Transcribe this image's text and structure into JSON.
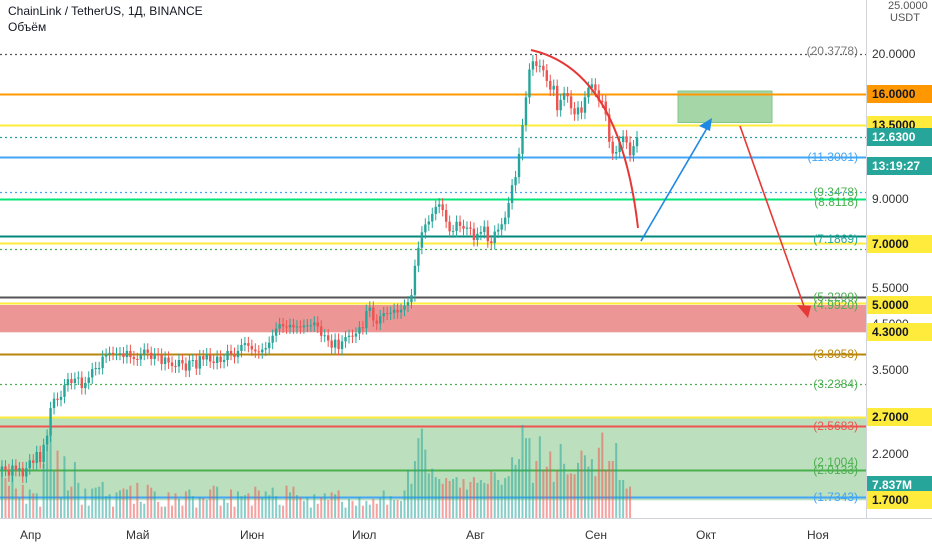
{
  "header": {
    "title": "ChainLink / TetherUS, 1Д, BINANCE",
    "volume_label": "Объём"
  },
  "axis": {
    "currency_top": "25.0000",
    "currency": "USDT"
  },
  "chart_data": {
    "type": "candlestick",
    "title": "ChainLink / TetherUS, 1Д, BINANCE",
    "exchange": "BINANCE",
    "timeframe": "1Д",
    "y_scale": "log",
    "ylim": [
      1.6,
      25
    ],
    "x_ticks": [
      "Апр",
      "Май",
      "Июн",
      "Июл",
      "Авг",
      "Сен",
      "Окт",
      "Ноя"
    ],
    "y_ticks": [
      "20.0000",
      "9.0000",
      "5.5000",
      "4.5000",
      "3.5000",
      "2.2000"
    ],
    "price_tags": [
      {
        "label": "16.0000",
        "value": 16.0,
        "bg": "#ff9800",
        "fg": "#131722"
      },
      {
        "label": "13.5000",
        "value": 13.5,
        "bg": "#ffeb3b",
        "fg": "#131722"
      },
      {
        "label": "12.6300",
        "value": 12.63,
        "bg": "#26a69a",
        "fg": "#ffffff"
      },
      {
        "label": "13:19:27",
        "value": 10.8,
        "bg": "#26a69a",
        "fg": "#ffffff"
      },
      {
        "label": "7.0000",
        "value": 7.0,
        "bg": "#ffeb3b",
        "fg": "#131722"
      },
      {
        "label": "5.0000",
        "value": 5.0,
        "bg": "#ffeb3b",
        "fg": "#131722"
      },
      {
        "label": "4.3000",
        "value": 4.3,
        "bg": "#ffeb3b",
        "fg": "#131722"
      },
      {
        "label": "2.7000",
        "value": 2.7,
        "bg": "#ffeb3b",
        "fg": "#131722"
      },
      {
        "label": "7.837M",
        "value": 1.85,
        "bg": "#26a69a",
        "fg": "#ffffff"
      },
      {
        "label": "1.7000",
        "value": 1.7,
        "bg": "#ffeb3b",
        "fg": "#131722"
      }
    ],
    "level_labels": [
      {
        "label": "(20.3778)",
        "value": 20.3778,
        "color": "#777777"
      },
      {
        "label": "(11.3001)",
        "value": 11.3001,
        "color": "#42a5f5"
      },
      {
        "label": "(9.3478)",
        "value": 9.3478,
        "color": "#4caf50"
      },
      {
        "label": "(8.8118)",
        "value": 8.8118,
        "color": "#4caf50"
      },
      {
        "label": "(7.1869)",
        "value": 7.1869,
        "color": "#26a69a"
      },
      {
        "label": "(5.2299)",
        "value": 5.2299,
        "color": "#4caf50"
      },
      {
        "label": "(4.9920)",
        "value": 4.992,
        "color": "#4caf50"
      },
      {
        "label": "(3.8058)",
        "value": 3.8058,
        "color": "#b8860b"
      },
      {
        "label": "(3.2384)",
        "value": 3.2384,
        "color": "#4caf50"
      },
      {
        "label": "(2.5683)",
        "value": 2.5683,
        "color": "#ef5350"
      },
      {
        "label": "(2.1004)",
        "value": 2.1004,
        "color": "#4caf50"
      },
      {
        "label": "(2.0133)",
        "value": 2.0133,
        "color": "#4caf50"
      },
      {
        "label": "(1.7343)",
        "value": 1.7343,
        "color": "#42a5f5"
      }
    ],
    "horizontal_levels": [
      {
        "value": 20.0,
        "color": "#555555",
        "style": "dotted"
      },
      {
        "value": 16.0,
        "color": "#ff9800",
        "style": "solid"
      },
      {
        "value": 13.5,
        "color": "#ffeb3b",
        "style": "solid"
      },
      {
        "value": 12.63,
        "color": "#26a69a",
        "style": "dotted"
      },
      {
        "value": 11.3001,
        "color": "#42a5f5",
        "style": "solid"
      },
      {
        "value": 9.3478,
        "color": "#42a5f5",
        "style": "dotted"
      },
      {
        "value": 9.0,
        "color": "#00e676",
        "style": "solid"
      },
      {
        "value": 7.3,
        "color": "#00897b",
        "style": "solid"
      },
      {
        "value": 7.05,
        "color": "#ffeb3b",
        "style": "solid"
      },
      {
        "value": 6.8,
        "color": "#4caf50",
        "style": "dotted"
      },
      {
        "value": 5.2299,
        "color": "#555555",
        "style": "solid"
      },
      {
        "value": 5.05,
        "color": "#ffeb3b",
        "style": "solid"
      },
      {
        "value": 3.8058,
        "color": "#b8860b",
        "style": "solid"
      },
      {
        "value": 3.2384,
        "color": "#4caf50",
        "style": "dotted"
      },
      {
        "value": 2.7,
        "color": "#ffeb3b",
        "style": "solid"
      },
      {
        "value": 2.5683,
        "color": "#ef5350",
        "style": "solid"
      },
      {
        "value": 2.0133,
        "color": "#4caf50",
        "style": "solid"
      },
      {
        "value": 1.7343,
        "color": "#42a5f5",
        "style": "solid"
      }
    ],
    "zones": [
      {
        "from": 4.3,
        "to": 5.0,
        "color": "#e57373"
      },
      {
        "from": 1.7,
        "to": 2.7,
        "color": "#a5d6a7"
      }
    ],
    "target_box": {
      "from": 13.7,
      "to": 16.3,
      "color": "#a5d6a7"
    },
    "series": [
      {
        "name": "LINKUSDT",
        "close": [
          2.05,
          2.01,
          1.95,
          2.06,
          2.01,
          2.03,
          1.94,
          2.03,
          2.12,
          2.09,
          2.22,
          2.1,
          2.31,
          2.43,
          2.83,
          2.98,
          2.96,
          3.01,
          3.21,
          3.32,
          3.25,
          3.33,
          3.35,
          3.16,
          3.25,
          3.35,
          3.51,
          3.53,
          3.53,
          3.76,
          3.8,
          3.84,
          3.82,
          3.82,
          3.83,
          3.75,
          3.88,
          3.75,
          3.71,
          3.7,
          3.82,
          3.91,
          3.84,
          3.71,
          3.81,
          3.8,
          3.61,
          3.74,
          3.64,
          3.57,
          3.56,
          3.69,
          3.62,
          3.48,
          3.68,
          3.69,
          3.52,
          3.77,
          3.7,
          3.81,
          3.66,
          3.63,
          3.76,
          3.65,
          3.69,
          3.88,
          3.82,
          3.75,
          3.88,
          4.01,
          4.05,
          3.99,
          3.91,
          3.87,
          3.85,
          3.91,
          3.94,
          4.06,
          4.22,
          4.39,
          4.5,
          4.44,
          4.42,
          4.48,
          4.42,
          4.44,
          4.42,
          4.46,
          4.47,
          4.47,
          4.54,
          4.44,
          4.22,
          4.23,
          4.11,
          3.95,
          4.13,
          3.92,
          4.09,
          4.19,
          4.22,
          4.2,
          4.27,
          4.42,
          4.4,
          4.84,
          4.93,
          4.59,
          4.51,
          4.7,
          4.78,
          4.77,
          4.79,
          4.87,
          4.8,
          4.87,
          4.98,
          5.08,
          5.28,
          6.21,
          6.86,
          7.47,
          7.8,
          7.93,
          8.27,
          8.6,
          8.72,
          8.45,
          7.92,
          7.51,
          7.52,
          7.92,
          7.74,
          7.62,
          7.67,
          7.62,
          7.16,
          7.41,
          7.48,
          7.71,
          7.11,
          7.04,
          7.5,
          7.58,
          7.81,
          8.1,
          8.78,
          9.69,
          10.13,
          11.52,
          13.51,
          15.74,
          18.36,
          19.21,
          18.72,
          18.74,
          18.28,
          17.24,
          16.43,
          16.78,
          14.66,
          15.53,
          16.12,
          15.83,
          14.82,
          14.33,
          14.89,
          14.46,
          15.75,
          16.59,
          16.91,
          16.35,
          15.44,
          15.38,
          14.32,
          12.32,
          11.54,
          11.64,
          12.3,
          12.69,
          12.27,
          11.43,
          12.02,
          12.63
        ]
      },
      {
        "name": "Объём",
        "values": [
          0.5,
          0.42,
          0.34,
          0.47,
          0.31,
          0.21,
          0.35,
          0.15,
          0.3,
          0.26,
          0.26,
          0.12,
          0.57,
          0.76,
          1.0,
          0.49,
          0.71,
          0.22,
          0.65,
          0.29,
          0.33,
          0.59,
          0.37,
          0.14,
          0.31,
          0.13,
          0.31,
          0.32,
          0.33,
          0.38,
          0.23,
          0.25,
          0.12,
          0.27,
          0.29,
          0.31,
          0.3,
          0.34,
          0.15,
          0.37,
          0.17,
          0.15,
          0.35,
          0.32,
          0.28,
          0.17,
          0.12,
          0.12,
          0.27,
          0.13,
          0.26,
          0.2,
          0.13,
          0.28,
          0.3,
          0.23,
          0.11,
          0.22,
          0.21,
          0.19,
          0.3,
          0.34,
          0.33,
          0.13,
          0.2,
          0.16,
          0.3,
          0.12,
          0.28,
          0.23,
          0.24,
          0.26,
          0.13,
          0.33,
          0.29,
          0.22,
          0.28,
          0.24,
          0.32,
          0.23,
          0.14,
          0.13,
          0.34,
          0.27,
          0.33,
          0.24,
          0.22,
          0.18,
          0.22,
          0.11,
          0.25,
          0.15,
          0.22,
          0.26,
          0.19,
          0.27,
          0.25,
          0.29,
          0.17,
          0.11,
          0.2,
          0.18,
          0.13,
          0.22,
          0.13,
          0.18,
          0.14,
          0.2,
          0.15,
          0.21,
          0.29,
          0.14,
          0.23,
          0.19,
          0.19,
          0.18,
          0.29,
          0.51,
          0.36,
          0.6,
          0.84,
          0.94,
          0.72,
          0.47,
          0.52,
          0.43,
          0.41,
          0.36,
          0.42,
          0.39,
          0.41,
          0.43,
          0.32,
          0.41,
          0.3,
          0.38,
          0.43,
          0.37,
          0.4,
          0.37,
          0.36,
          0.49,
          0.48,
          0.4,
          0.35,
          0.42,
          0.44,
          0.64,
          0.56,
          0.62,
          0.98,
          0.84,
          0.84,
          0.37,
          0.6,
          0.86,
          0.5,
          0.54,
          0.7,
          0.38,
          0.5,
          0.78,
          0.57,
          0.46,
          0.47,
          0.46,
          0.58,
          0.71,
          0.66,
          0.54,
          0.62,
          0.44,
          0.74,
          0.9,
          0.5,
          0.6,
          0.6,
          0.79,
          0.4,
          0.4,
          0.31,
          0.33
        ]
      }
    ],
    "annotations": [
      "red arc projection from top",
      "blue arrow up to target box",
      "red arrow down to support zone"
    ]
  }
}
